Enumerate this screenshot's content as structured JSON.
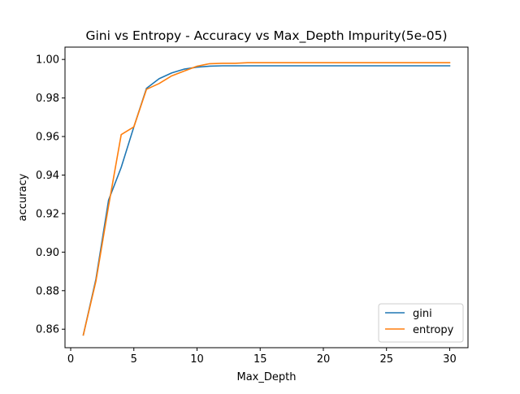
{
  "chart_data": {
    "type": "line",
    "title": "Gini vs Entropy - Accuracy vs Max_Depth Impurity(5e-05)",
    "xlabel": "Max_Depth",
    "ylabel": "accuracy",
    "xlim": [
      -0.45,
      31.45
    ],
    "ylim": [
      0.8504,
      1.0064
    ],
    "xticks": [
      0,
      5,
      10,
      15,
      20,
      25,
      30
    ],
    "yticks": [
      0.86,
      0.88,
      0.9,
      0.92,
      0.94,
      0.96,
      0.98,
      1.0
    ],
    "xtick_labels": [
      "0",
      "5",
      "10",
      "15",
      "20",
      "25",
      "30"
    ],
    "ytick_labels": [
      "0.86",
      "0.88",
      "0.90",
      "0.92",
      "0.94",
      "0.96",
      "0.98",
      "1.00"
    ],
    "grid": false,
    "legend_position": "lower-right",
    "x": [
      1,
      2,
      3,
      4,
      5,
      6,
      7,
      8,
      9,
      10,
      11,
      12,
      13,
      14,
      15,
      16,
      17,
      18,
      19,
      20,
      21,
      22,
      23,
      24,
      25,
      26,
      27,
      28,
      29,
      30
    ],
    "series": [
      {
        "name": "gini",
        "color": "#1f77b4",
        "values": [
          0.857,
          0.886,
          0.927,
          0.944,
          0.965,
          0.985,
          0.99,
          0.993,
          0.995,
          0.996,
          0.9965,
          0.9967,
          0.9967,
          0.9967,
          0.9967,
          0.9967,
          0.9967,
          0.9967,
          0.9967,
          0.9967,
          0.9967,
          0.9967,
          0.9967,
          0.9967,
          0.9967,
          0.9967,
          0.9967,
          0.9967,
          0.9967,
          0.9967
        ]
      },
      {
        "name": "entropy",
        "color": "#ff7f0e",
        "values": [
          0.857,
          0.885,
          0.924,
          0.961,
          0.965,
          0.9845,
          0.9875,
          0.9915,
          0.994,
          0.9965,
          0.9978,
          0.998,
          0.998,
          0.9983,
          0.9983,
          0.9983,
          0.9983,
          0.9983,
          0.9983,
          0.9983,
          0.9983,
          0.9983,
          0.9983,
          0.9983,
          0.9983,
          0.9983,
          0.9983,
          0.9983,
          0.9983,
          0.9983
        ]
      }
    ]
  }
}
